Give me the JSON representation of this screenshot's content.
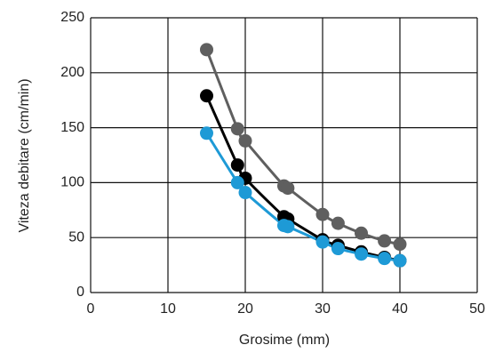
{
  "chart_data": {
    "type": "line",
    "x_label": "Grosime (mm)",
    "y_label": "Viteza debitare (cm/min)",
    "x": [
      15,
      19,
      20,
      25,
      25.5,
      30,
      32,
      35,
      38,
      40
    ],
    "series": [
      {
        "name": null,
        "color": "#5f5f5f",
        "values": [
          221,
          149,
          138,
          97,
          95,
          71,
          63,
          54,
          47,
          44
        ]
      },
      {
        "name": null,
        "color": "#000000",
        "values": [
          179,
          116,
          104,
          69,
          67,
          48,
          43,
          37,
          32,
          29
        ]
      },
      {
        "name": null,
        "color": "#1e9ad6",
        "values": [
          145,
          100,
          91,
          61,
          60,
          46,
          40,
          35,
          31,
          29
        ]
      }
    ],
    "xlim": [
      0,
      50
    ],
    "xticks": [
      0,
      10,
      20,
      30,
      40,
      50
    ],
    "ylim": [
      0,
      250
    ],
    "yticks": [
      0,
      50,
      100,
      150,
      200,
      250
    ],
    "grid": true
  }
}
